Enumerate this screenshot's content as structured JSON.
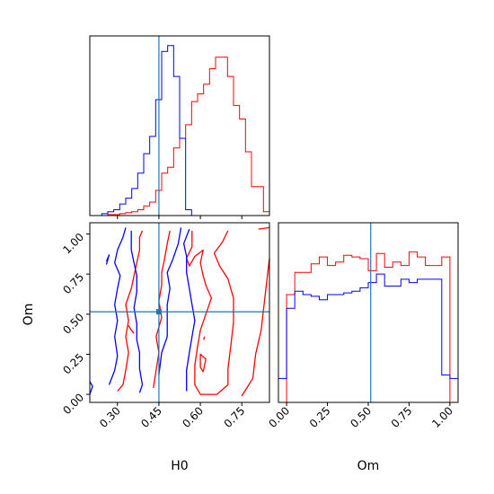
{
  "chart_data": {
    "type": "corner",
    "colors": {
      "red_sample": "#ff0000",
      "blue_sample": "#0000ff",
      "truth": "#1f77b4"
    },
    "axis_labels": {
      "h0": "H0",
      "om": "Om"
    },
    "truth": {
      "h0": 0.45,
      "om": 0.515
    },
    "panels": [
      {
        "id": "h0-hist",
        "type": "histogram",
        "xlim": [
          0.2,
          0.85
        ],
        "bins": [
          0.2,
          0.2217,
          0.2433,
          0.265,
          0.2867,
          0.3083,
          0.33,
          0.3517,
          0.3733,
          0.395,
          0.4167,
          0.4383,
          0.46,
          0.4817,
          0.5033,
          0.525,
          0.5467,
          0.5683,
          0.59,
          0.6117,
          0.6333,
          0.655,
          0.6767,
          0.6983,
          0.72,
          0.7417,
          0.7633,
          0.785,
          0.8067,
          0.8283,
          0.85
        ],
        "series": [
          {
            "name": "",
            "color": "#ff0000",
            "values": [
              0,
              0,
              0,
              0.5,
              0.5,
              1,
              1.5,
              2,
              3,
              5,
              7,
              13,
              22,
              25,
              35,
              40,
              47,
              59,
              63,
              68,
              76,
              82,
              82,
              72,
              57,
              50,
              33,
              15,
              15,
              2
            ]
          },
          {
            "name": "",
            "color": "#0000ff",
            "values": [
              0,
              0,
              1,
              2,
              3,
              6,
              9,
              14,
              22,
              32,
              41,
              60,
              85,
              88,
              72,
              40,
              3,
              0,
              0,
              0,
              0,
              0,
              0,
              0,
              0,
              0,
              0,
              0,
              0,
              0
            ]
          }
        ],
        "ylim": [
          0,
          93
        ]
      },
      {
        "id": "om-hist",
        "type": "histogram",
        "xlim": [
          -0.05,
          1.05
        ],
        "bins": [
          -0.05,
          0.0,
          0.05,
          0.1,
          0.15,
          0.2,
          0.25,
          0.3,
          0.35,
          0.4,
          0.45,
          0.5,
          0.55,
          0.6,
          0.65,
          0.7,
          0.75,
          0.8,
          0.85,
          0.9,
          0.95,
          1.0,
          1.05
        ],
        "series": [
          {
            "name": "",
            "color": "#ff0000",
            "values": [
              0,
              63,
              76,
              76,
              81,
              85,
              80,
              82,
              86,
              85,
              84,
              77,
              87,
              79,
              82,
              80,
              88,
              85,
              80,
              80,
              85,
              0
            ]
          },
          {
            "name": "",
            "color": "#0000ff",
            "values": [
              14,
              55,
              65,
              63,
              62,
              60,
              63,
              63,
              64,
              65,
              67,
              70,
              75,
              68,
              68,
              72,
              70,
              72,
              72,
              72,
              16,
              14
            ]
          }
        ],
        "ylim": [
          0,
          105
        ]
      },
      {
        "id": "h0-om-contours",
        "type": "contour",
        "xlim": [
          0.2,
          0.85
        ],
        "ylim": [
          -0.05,
          1.07
        ],
        "series": [
          {
            "name": "",
            "color": "#ff0000",
            "paths": [
              [
                [
                  0.3,
                  0.02
                ],
                [
                  0.32,
                  0.06
                ],
                [
                  0.33,
                  0.15
                ],
                [
                  0.34,
                  0.26
                ],
                [
                  0.33,
                  0.36
                ],
                [
                  0.34,
                  0.46
                ],
                [
                  0.33,
                  0.56
                ],
                [
                  0.35,
                  0.66
                ],
                [
                  0.36,
                  0.74
                ],
                [
                  0.37,
                  0.82
                ],
                [
                  0.38,
                  0.9
                ],
                [
                  0.38,
                  0.98
                ],
                [
                  0.39,
                  1.02
                ]
              ],
              [
                [
                  0.43,
                  0.04
                ],
                [
                  0.44,
                  0.15
                ],
                [
                  0.45,
                  0.26
                ],
                [
                  0.44,
                  0.36
                ],
                [
                  0.46,
                  0.48
                ],
                [
                  0.45,
                  0.58
                ],
                [
                  0.46,
                  0.68
                ],
                [
                  0.46,
                  0.76
                ],
                [
                  0.47,
                  0.84
                ],
                [
                  0.48,
                  0.94
                ],
                [
                  0.49,
                  1.02
                ]
              ],
              [
                [
                  0.57,
                  1.02
                ],
                [
                  0.57,
                  0.92
                ],
                [
                  0.55,
                  0.85
                ],
                [
                  0.56,
                  0.8
                ],
                [
                  0.58,
                  0.86
                ],
                [
                  0.61,
                  0.9
                ],
                [
                  0.6,
                  0.82
                ],
                [
                  0.61,
                  0.74
                ],
                [
                  0.62,
                  0.68
                ],
                [
                  0.64,
                  0.6
                ],
                [
                  0.62,
                  0.5
                ],
                [
                  0.6,
                  0.4
                ],
                [
                  0.59,
                  0.3
                ],
                [
                  0.58,
                  0.18
                ],
                [
                  0.58,
                  0.06
                ],
                [
                  0.6,
                  0.0
                ],
                [
                  0.66,
                  0.0
                ],
                [
                  0.7,
                  0.06
                ],
                [
                  0.7,
                  0.16
                ],
                [
                  0.71,
                  0.3
                ],
                [
                  0.72,
                  0.45
                ],
                [
                  0.72,
                  0.6
                ],
                [
                  0.7,
                  0.72
                ],
                [
                  0.67,
                  0.8
                ],
                [
                  0.65,
                  0.88
                ],
                [
                  0.68,
                  0.95
                ],
                [
                  0.7,
                  1.02
                ]
              ],
              [
                [
                  0.75,
                  -0.01
                ],
                [
                  0.79,
                  0.1
                ],
                [
                  0.8,
                  0.25
                ],
                [
                  0.82,
                  0.4
                ],
                [
                  0.83,
                  0.55
                ],
                [
                  0.84,
                  0.7
                ],
                [
                  0.85,
                  0.85
                ]
              ],
              [
                [
                  0.81,
                  1.03
                ],
                [
                  0.85,
                  1.04
                ]
              ],
              [
                [
                  0.61,
                  0.14
                ],
                [
                  0.62,
                  0.22
                ],
                [
                  0.6,
                  0.25
                ],
                [
                  0.6,
                  0.17
                ],
                [
                  0.61,
                  0.14
                ]
              ],
              [
                [
                  0.612,
                  0.34
                ],
                [
                  0.615,
                  0.36
                ]
              ],
              [
                [
                  0.36,
                  0.38
                ],
                [
                  0.35,
                  0.4
                ],
                [
                  0.34,
                  0.43
                ]
              ]
            ]
          },
          {
            "name": "",
            "color": "#0000ff",
            "paths": [
              [
                [
                  0.27,
                  0.06
                ],
                [
                  0.29,
                  0.15
                ],
                [
                  0.3,
                  0.24
                ],
                [
                  0.29,
                  0.36
                ],
                [
                  0.3,
                  0.46
                ],
                [
                  0.29,
                  0.56
                ],
                [
                  0.3,
                  0.66
                ],
                [
                  0.31,
                  0.74
                ],
                [
                  0.29,
                  0.82
                ],
                [
                  0.3,
                  0.9
                ],
                [
                  0.32,
                  0.98
                ],
                [
                  0.33,
                  1.04
                ]
              ],
              [
                [
                  0.35,
                  1.02
                ],
                [
                  0.35,
                  0.9
                ],
                [
                  0.36,
                  0.82
                ],
                [
                  0.37,
                  0.74
                ],
                [
                  0.37,
                  0.64
                ],
                [
                  0.36,
                  0.54
                ],
                [
                  0.37,
                  0.44
                ],
                [
                  0.37,
                  0.34
                ],
                [
                  0.38,
                  0.26
                ],
                [
                  0.38,
                  0.16
                ],
                [
                  0.39,
                  0.06
                ],
                [
                  0.38,
                  0.01
                ]
              ],
              [
                [
                  0.45,
                  0.12
                ],
                [
                  0.46,
                  0.26
                ],
                [
                  0.48,
                  0.36
                ],
                [
                  0.48,
                  0.46
                ],
                [
                  0.48,
                  0.56
                ],
                [
                  0.49,
                  0.66
                ],
                [
                  0.48,
                  0.76
                ],
                [
                  0.5,
                  0.84
                ],
                [
                  0.52,
                  0.94
                ],
                [
                  0.53,
                  1.04
                ]
              ],
              [
                [
                  0.55,
                  0.02
                ],
                [
                  0.55,
                  0.15
                ],
                [
                  0.56,
                  0.26
                ],
                [
                  0.57,
                  0.36
                ],
                [
                  0.58,
                  0.46
                ],
                [
                  0.57,
                  0.56
                ],
                [
                  0.56,
                  0.66
                ],
                [
                  0.55,
                  0.76
                ],
                [
                  0.55,
                  0.86
                ],
                [
                  0.54,
                  0.94
                ],
                [
                  0.56,
                  1.03
                ]
              ],
              [
                [
                  0.2,
                  0.0
                ],
                [
                  0.21,
                  0.05
                ],
                [
                  0.2,
                  0.08
                ]
              ],
              [
                [
                  0.26,
                  0.81
                ],
                [
                  0.27,
                  0.87
                ],
                [
                  0.26,
                  0.83
                ]
              ]
            ]
          }
        ]
      }
    ],
    "ticks": {
      "h0": [
        0.3,
        0.45,
        0.6,
        0.75
      ],
      "h0_labels": [
        "0.30",
        "0.45",
        "0.60",
        "0.75"
      ],
      "om_y": [
        0.0,
        0.25,
        0.5,
        0.75,
        1.0
      ],
      "om_y_labels": [
        "0.00",
        "0.25",
        "0.50",
        "0.75",
        "1.00"
      ],
      "om_x": [
        0.0,
        0.25,
        0.5,
        0.75,
        1.0
      ],
      "om_x_labels": [
        "0.00",
        "0.25",
        "0.50",
        "0.75",
        "1.00"
      ]
    }
  }
}
